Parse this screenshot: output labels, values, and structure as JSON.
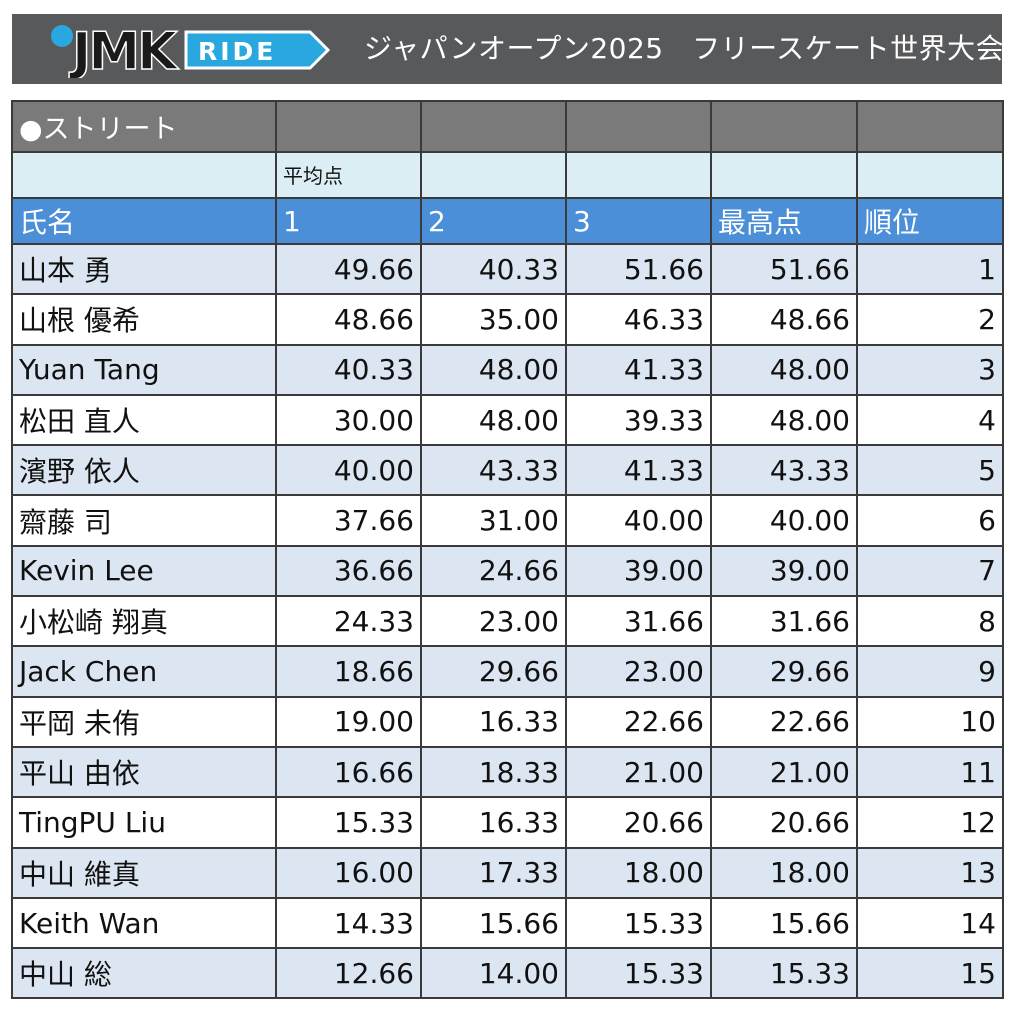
{
  "header": {
    "logo_text_left": "JMK",
    "logo_text_right": "RIDE",
    "title": "ジャパンオープン2025　フリースケート世界大会"
  },
  "colors": {
    "banner": "#58595b",
    "logo_blue": "#29a8e0",
    "section_row": "#7a7a7a",
    "subheader_row": "#dbeef4",
    "header_row": "#4a8fd8",
    "stripe_row": "#dce6f2"
  },
  "table": {
    "section_label": "●ストリート",
    "sub_label": "平均点",
    "columns": [
      "氏名",
      "1",
      "2",
      "3",
      "最高点",
      "順位"
    ],
    "rows": [
      {
        "name": "山本 勇",
        "r1": "49.66",
        "r2": "40.33",
        "r3": "51.66",
        "best": "51.66",
        "rank": "1"
      },
      {
        "name": "山根 優希",
        "r1": "48.66",
        "r2": "35.00",
        "r3": "46.33",
        "best": "48.66",
        "rank": "2"
      },
      {
        "name": "Yuan Tang",
        "r1": "40.33",
        "r2": "48.00",
        "r3": "41.33",
        "best": "48.00",
        "rank": "3"
      },
      {
        "name": "松田 直人",
        "r1": "30.00",
        "r2": "48.00",
        "r3": "39.33",
        "best": "48.00",
        "rank": "4"
      },
      {
        "name": "濱野 依人",
        "r1": "40.00",
        "r2": "43.33",
        "r3": "41.33",
        "best": "43.33",
        "rank": "5"
      },
      {
        "name": "齋藤 司",
        "r1": "37.66",
        "r2": "31.00",
        "r3": "40.00",
        "best": "40.00",
        "rank": "6"
      },
      {
        "name": "Kevin Lee",
        "r1": "36.66",
        "r2": "24.66",
        "r3": "39.00",
        "best": "39.00",
        "rank": "7"
      },
      {
        "name": "小松崎 翔真",
        "r1": "24.33",
        "r2": "23.00",
        "r3": "31.66",
        "best": "31.66",
        "rank": "8"
      },
      {
        "name": "Jack Chen",
        "r1": "18.66",
        "r2": "29.66",
        "r3": "23.00",
        "best": "29.66",
        "rank": "9"
      },
      {
        "name": "平岡 未侑",
        "r1": "19.00",
        "r2": "16.33",
        "r3": "22.66",
        "best": "22.66",
        "rank": "10"
      },
      {
        "name": "平山 由依",
        "r1": "16.66",
        "r2": "18.33",
        "r3": "21.00",
        "best": "21.00",
        "rank": "11"
      },
      {
        "name": "TingPU Liu",
        "r1": "15.33",
        "r2": "16.33",
        "r3": "20.66",
        "best": "20.66",
        "rank": "12"
      },
      {
        "name": "中山 維真",
        "r1": "16.00",
        "r2": "17.33",
        "r3": "18.00",
        "best": "18.00",
        "rank": "13"
      },
      {
        "name": "Keith Wan",
        "r1": "14.33",
        "r2": "15.66",
        "r3": "15.33",
        "best": "15.66",
        "rank": "14"
      },
      {
        "name": "中山 総",
        "r1": "12.66",
        "r2": "14.00",
        "r3": "15.33",
        "best": "15.33",
        "rank": "15"
      }
    ]
  }
}
